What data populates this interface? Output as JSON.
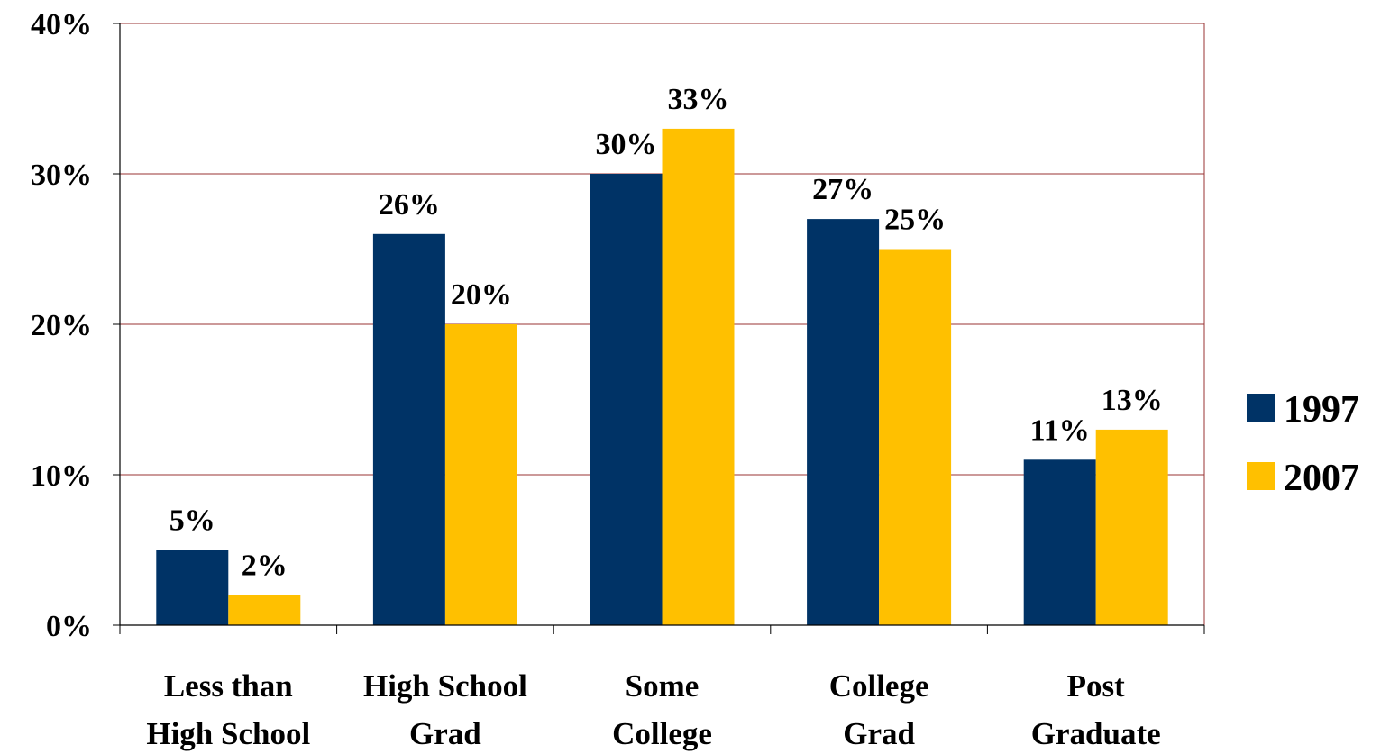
{
  "chart_data": {
    "type": "bar",
    "title": "",
    "xlabel": "",
    "ylabel": "",
    "categories": [
      [
        "Less than",
        "High School"
      ],
      [
        "High School",
        "Grad"
      ],
      [
        "Some",
        "College"
      ],
      [
        "College",
        "Grad"
      ],
      [
        "Post",
        "Graduate"
      ]
    ],
    "series": [
      {
        "name": "1997",
        "color": "#003366",
        "values": [
          5,
          26,
          30,
          27,
          11
        ],
        "labels": [
          "5%",
          "26%",
          "30%",
          "27%",
          "11%"
        ]
      },
      {
        "name": "2007",
        "color": "#FFC000",
        "values": [
          2,
          20,
          33,
          25,
          13
        ],
        "labels": [
          "2%",
          "20%",
          "33%",
          "25%",
          "13%"
        ]
      }
    ],
    "ylim": [
      0,
      40
    ],
    "yticks": [
      0,
      10,
      20,
      30,
      40
    ],
    "ytick_labels": [
      "0%",
      "10%",
      "20%",
      "30%",
      "40%"
    ],
    "grid": true,
    "grid_color": "#993333",
    "legend_position": "right"
  }
}
